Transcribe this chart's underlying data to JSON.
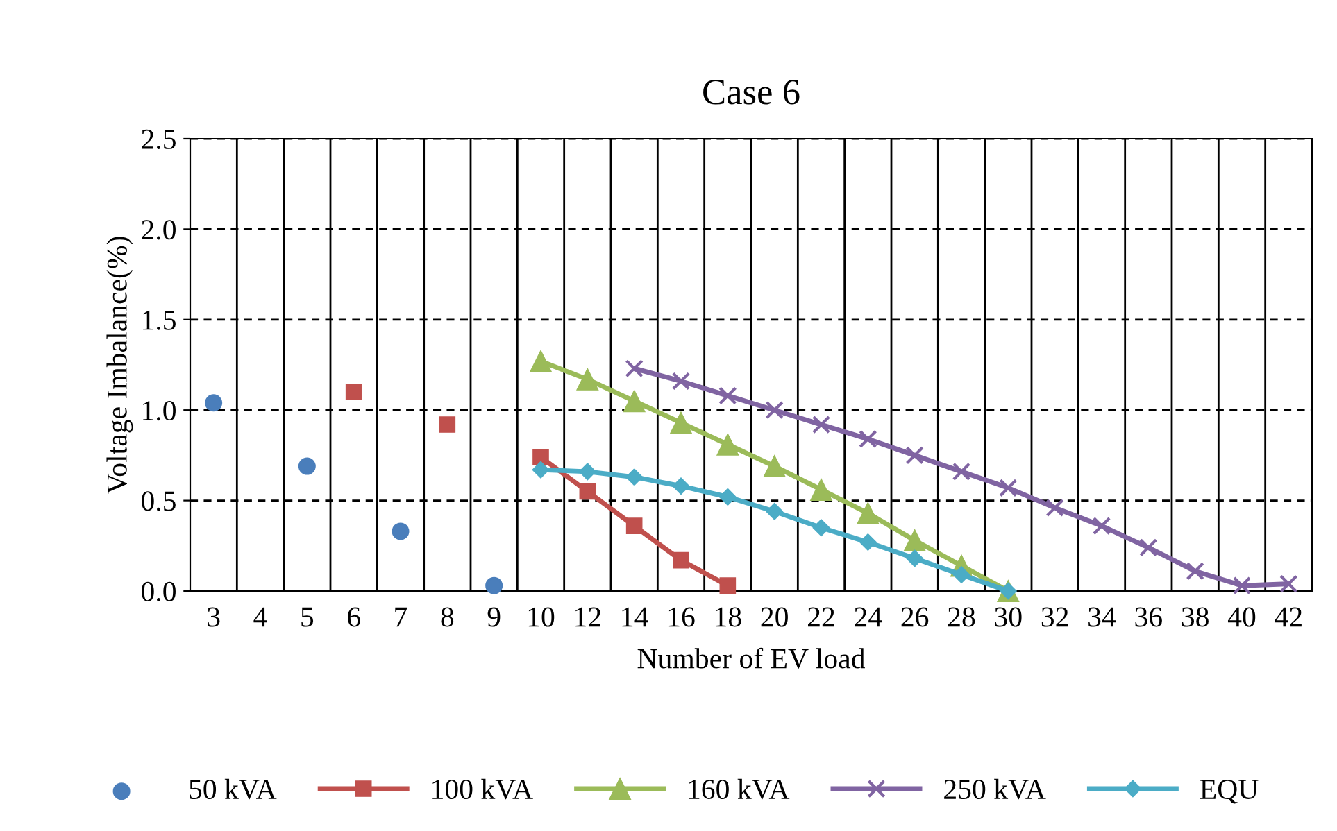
{
  "chart_data": {
    "type": "line",
    "title": "Case 6",
    "xlabel": "Number of EV load",
    "ylabel": "Voltage Imbalance(%)",
    "categories": [
      "3",
      "4",
      "5",
      "6",
      "7",
      "8",
      "9",
      "10",
      "12",
      "14",
      "16",
      "18",
      "20",
      "22",
      "24",
      "26",
      "28",
      "30",
      "32",
      "34",
      "36",
      "38",
      "40",
      "42"
    ],
    "ylim": [
      0,
      2.5
    ],
    "yticks": [
      {
        "value": 0,
        "label": "0.0"
      },
      {
        "value": 0.5,
        "label": "0.5"
      },
      {
        "value": 1,
        "label": "1.0"
      },
      {
        "value": 1.5,
        "label": "1.5"
      },
      {
        "value": 2,
        "label": "2.0"
      },
      {
        "value": 2.5,
        "label": "2.5"
      }
    ],
    "grid": true,
    "legend": "bottom",
    "series": [
      {
        "name": "50 kVA",
        "type": "scatter",
        "color": "#4a7ebb",
        "marker": "circle",
        "values": [
          1.04,
          null,
          0.69,
          null,
          0.33,
          null,
          0.03,
          null,
          null,
          null,
          null,
          null,
          null,
          null,
          null,
          null,
          null,
          null,
          null,
          null,
          null,
          null,
          null,
          null
        ]
      },
      {
        "name": "100 kVA",
        "color": "#c0504d",
        "marker": "square",
        "values": [
          null,
          null,
          null,
          1.1,
          null,
          0.92,
          null,
          0.74,
          0.55,
          0.36,
          0.17,
          0.03,
          null,
          null,
          null,
          null,
          null,
          null,
          null,
          null,
          null,
          null,
          null,
          null
        ]
      },
      {
        "name": "160 kVA",
        "color": "#9bbb59",
        "marker": "triangle",
        "values": [
          null,
          null,
          null,
          null,
          null,
          null,
          null,
          1.27,
          1.17,
          1.05,
          0.93,
          0.81,
          0.69,
          0.56,
          0.43,
          0.28,
          0.14,
          0.0,
          null,
          null,
          null,
          null,
          null,
          null
        ]
      },
      {
        "name": "250 kVA",
        "color": "#8064a2",
        "marker": "cross",
        "values": [
          null,
          null,
          null,
          null,
          null,
          null,
          null,
          null,
          null,
          1.23,
          1.16,
          1.08,
          1.0,
          0.92,
          0.84,
          0.75,
          0.66,
          0.57,
          0.46,
          0.36,
          0.24,
          0.11,
          0.03,
          0.04
        ]
      },
      {
        "name": "EQU",
        "color": "#4bacc6",
        "marker": "diamond",
        "values": [
          null,
          null,
          null,
          null,
          null,
          null,
          null,
          0.67,
          0.66,
          0.63,
          0.58,
          0.52,
          0.44,
          0.35,
          0.27,
          0.18,
          0.09,
          0.0,
          null,
          null,
          null,
          null,
          null,
          null
        ]
      }
    ]
  }
}
